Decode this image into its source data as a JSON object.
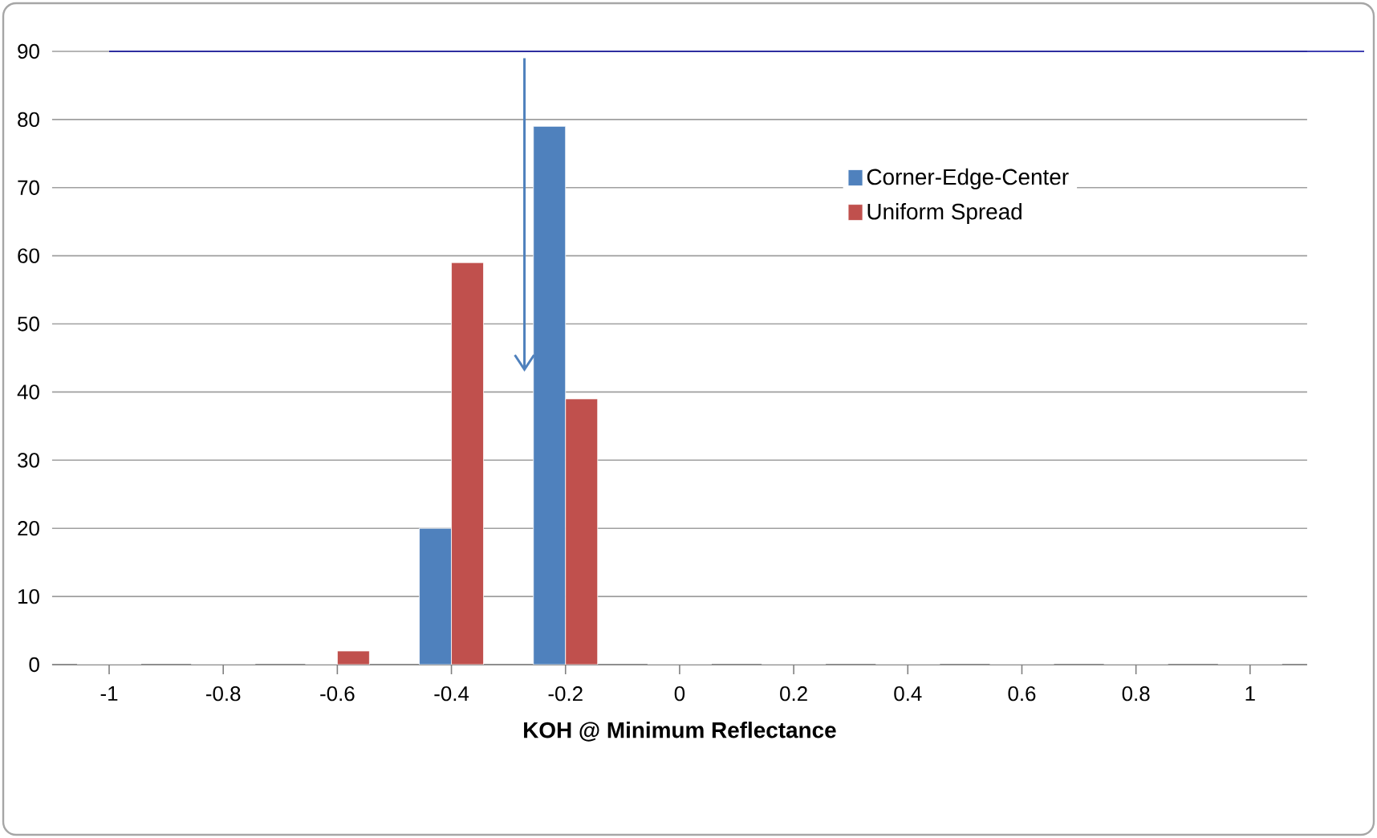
{
  "chart_data": {
    "type": "bar",
    "xlabel": "KOH @ Minimum Reflectance",
    "categories": [
      "-1",
      "-0.8",
      "-0.6",
      "-0.4",
      "-0.2",
      "0",
      "0.2",
      "0.4",
      "0.6",
      "0.8",
      "1"
    ],
    "series": [
      {
        "name": "Corner-Edge-Center",
        "color": "#4f81bd",
        "values": [
          0,
          0,
          0,
          20,
          79,
          0,
          0,
          0,
          0,
          0,
          0
        ]
      },
      {
        "name": "Uniform Spread",
        "color": "#c0504d",
        "values": [
          0,
          0,
          2,
          59,
          39,
          0,
          0,
          0,
          0,
          0,
          0
        ]
      }
    ],
    "ylim": [
      0,
      90
    ],
    "yticks": [
      0,
      10,
      20,
      30,
      40,
      50,
      60,
      70,
      80,
      90
    ],
    "grid": "y",
    "legend": "right"
  }
}
